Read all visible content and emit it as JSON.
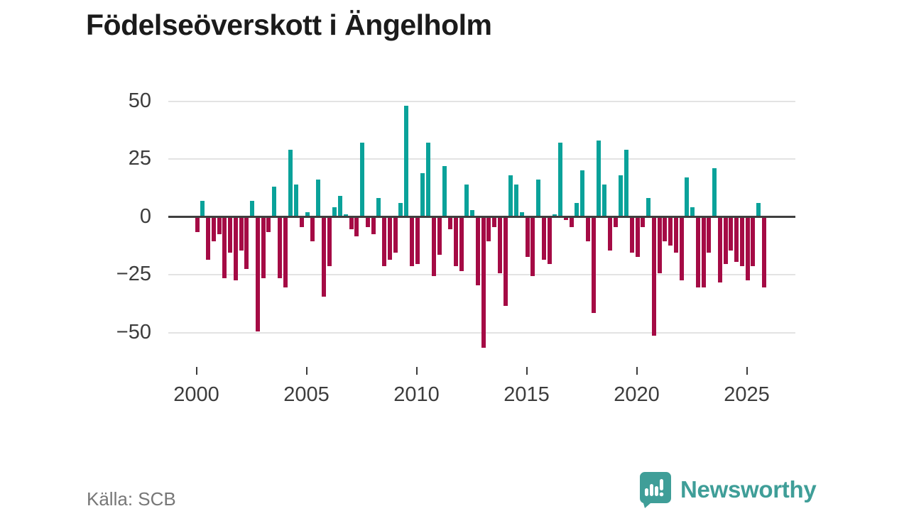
{
  "header": {
    "title": "Födelseöverskott i Ängelholm"
  },
  "footer": {
    "source": "Källa: SCB",
    "brand": "Newsworthy"
  },
  "colors": {
    "positive": "#0aa29a",
    "negative": "#a50b45",
    "zero_axis": "#3f3f3f",
    "grid": "#e3e3e3",
    "tick_label": "#3c3c3c",
    "title": "#1b1b1b",
    "source_text": "#777777",
    "brand_teal": "#3f9e98",
    "background": "#ffffff"
  },
  "chart_data": {
    "type": "bar",
    "title": "Födelseöverskott i Ängelholm",
    "frequency": "quarterly",
    "x_start_year": 2000,
    "x_end_year": 2025,
    "values": [
      -6,
      7,
      -18,
      -10,
      -7,
      -26,
      -15,
      -27,
      -14,
      -22,
      7,
      -49,
      -26,
      -6,
      13,
      -26,
      -30,
      29,
      14,
      -4,
      2,
      -10,
      16,
      -34,
      -21,
      4,
      9,
      1,
      -5,
      -8,
      32,
      -4,
      -7,
      8,
      -21,
      -18,
      -15,
      6,
      48,
      -21,
      -20,
      19,
      32,
      -25,
      -16,
      22,
      -5,
      -21,
      -23,
      14,
      3,
      -29,
      -56,
      -10,
      -4,
      -24,
      -38,
      18,
      14,
      2,
      -17,
      -25,
      16,
      -18,
      -20,
      1,
      32,
      -1,
      -4,
      6,
      20,
      -10,
      -41,
      33,
      14,
      -14,
      -4,
      18,
      29,
      -15,
      -17,
      -4,
      8,
      -51,
      -24,
      -10,
      -12,
      -15,
      -27,
      17,
      4,
      -30,
      -30,
      -15,
      21,
      -28,
      -20,
      -14,
      -19,
      -21,
      -27,
      -21,
      6,
      -30
    ],
    "yticks": [
      50,
      25,
      0,
      -25,
      -50
    ],
    "ytick_labels": [
      "50",
      "25",
      "0",
      "−25",
      "−50"
    ],
    "xticks": [
      2000,
      2005,
      2010,
      2015,
      2020,
      2025
    ],
    "ylim": [
      -60,
      55
    ],
    "grid": "horizontal-only",
    "legend": "none",
    "positive_color": "#0aa29a",
    "negative_color": "#a50b45"
  }
}
